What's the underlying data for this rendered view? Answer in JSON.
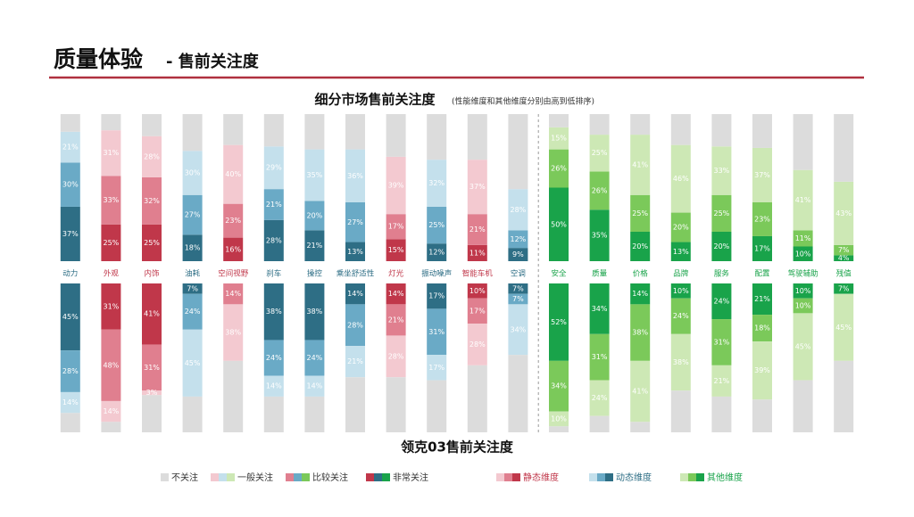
{
  "header": {
    "title": "质量体验",
    "subtitle": "- 售前关注度"
  },
  "groups": [
    {
      "name": "静态维度",
      "colors": [
        "#c0374a",
        "#e07f8f",
        "#f3c9d0"
      ]
    },
    {
      "name": "动态维度",
      "colors": [
        "#2e6e85",
        "#6aaac6",
        "#c4e0ec"
      ]
    },
    {
      "name": "其他维度",
      "colors": [
        "#19a34a",
        "#7bc95a",
        "#cde8b5"
      ]
    }
  ],
  "category_groups": [
    1,
    0,
    0,
    1,
    0,
    1,
    1,
    1,
    0,
    1,
    0,
    1,
    2,
    2,
    2,
    2,
    2,
    2,
    2,
    2
  ],
  "chart_data": [
    {
      "type": "bar",
      "stacked": true,
      "stack_direction": "up",
      "ylim": [
        0,
        100
      ],
      "title": "细分市场售前关注度",
      "subtitle": "(性能维度和其他维度分别由高到低排序)",
      "categories": [
        "动力",
        "外观",
        "内饰",
        "油耗",
        "空间视野",
        "刹车",
        "操控",
        "乘坐舒适性",
        "灯光",
        "振动噪声",
        "智能车机",
        "空调",
        "安全",
        "质量",
        "价格",
        "品牌",
        "服务",
        "配置",
        "驾驶辅助",
        "残值"
      ],
      "series": [
        {
          "name": "非常关注",
          "values": [
            37,
            25,
            25,
            18,
            16,
            28,
            21,
            13,
            15,
            12,
            11,
            9,
            50,
            35,
            20,
            13,
            20,
            17,
            10,
            4
          ],
          "value_labels": [
            "37%",
            "25%",
            "25%",
            "18%",
            "16%",
            "28%",
            "21%",
            "13%",
            "15%",
            "12%",
            "11%",
            "9%",
            "50%",
            "35%",
            "20%",
            "13%",
            "20%",
            "17%",
            "10%",
            "4%"
          ]
        },
        {
          "name": "比较关注",
          "values": [
            30,
            33,
            32,
            27,
            23,
            21,
            20,
            27,
            17,
            25,
            21,
            12,
            26,
            26,
            25,
            20,
            25,
            23,
            11,
            7
          ],
          "value_labels": [
            "30%",
            "33%",
            "32%",
            "27%",
            "23%",
            "21%",
            "20%",
            "27%",
            "17%",
            "25%",
            "21%",
            "12%",
            "26%",
            "26%",
            "25%",
            "20%",
            "25%",
            "23%",
            "11%",
            "7%"
          ]
        },
        {
          "name": "一般关注",
          "values": [
            21,
            31,
            28,
            30,
            40,
            29,
            35,
            36,
            39,
            32,
            37,
            28,
            15,
            25,
            41,
            46,
            33,
            37,
            41,
            43
          ],
          "value_labels": [
            "21%",
            "31%",
            "28%",
            "30%",
            "40%",
            "29%",
            "35%",
            "36%",
            "39%",
            "32%",
            "37%",
            "28%",
            "15%",
            "25%",
            "41%",
            "46%",
            "33%",
            "37%",
            "41%",
            "43%"
          ]
        },
        {
          "name": "不关注",
          "color": "#dcdcdc",
          "values": [
            12,
            11,
            15,
            25,
            21,
            22,
            24,
            24,
            29,
            31,
            31,
            51,
            9,
            14,
            14,
            21,
            22,
            23,
            38,
            46
          ]
        }
      ]
    },
    {
      "type": "bar",
      "stacked": true,
      "stack_direction": "down",
      "ylim": [
        0,
        100
      ],
      "title": "领克03售前关注度",
      "series": [
        {
          "name": "非常关注",
          "values": [
            45,
            31,
            41,
            7,
            null,
            38,
            38,
            14,
            14,
            17,
            10,
            7,
            52,
            34,
            14,
            10,
            24,
            21,
            10,
            7
          ],
          "value_labels": [
            "45%",
            "31%",
            "41%",
            "7%",
            null,
            "38%",
            "38%",
            "14%",
            "14%",
            "17%",
            "10%",
            "7%",
            "52%",
            "34%",
            "14%",
            "10%",
            "24%",
            "21%",
            "10%",
            "7%"
          ]
        },
        {
          "name": "比较关注",
          "values": [
            28,
            48,
            31,
            24,
            14,
            24,
            24,
            28,
            21,
            31,
            17,
            7,
            34,
            31,
            38,
            24,
            31,
            18,
            10,
            null
          ],
          "value_labels": [
            "28%",
            "48%",
            "31%",
            "24%",
            "14%",
            "24%",
            "24%",
            "28%",
            "21%",
            "31%",
            "17%",
            "7%",
            "34%",
            "31%",
            "38%",
            "24%",
            "31%",
            "18%",
            "10%",
            null
          ]
        },
        {
          "name": "一般关注",
          "values": [
            14,
            14,
            3,
            45,
            38,
            14,
            14,
            21,
            28,
            17,
            28,
            34,
            10,
            24,
            41,
            38,
            21,
            39,
            45,
            45
          ],
          "value_labels": [
            "14%",
            "14%",
            "3%",
            "45%",
            "38%",
            "14%",
            "14%",
            "21%",
            "28%",
            "17%",
            "28%",
            "34%",
            "10%",
            "24%",
            "41%",
            "38%",
            "21%",
            "39%",
            "45%",
            "45%"
          ]
        },
        {
          "name": "不关注",
          "color": "#dcdcdc",
          "values": [
            13,
            7,
            25,
            24,
            48,
            24,
            24,
            37,
            37,
            35,
            45,
            52,
            4,
            11,
            7,
            28,
            24,
            22,
            35,
            48
          ]
        }
      ]
    }
  ]
}
